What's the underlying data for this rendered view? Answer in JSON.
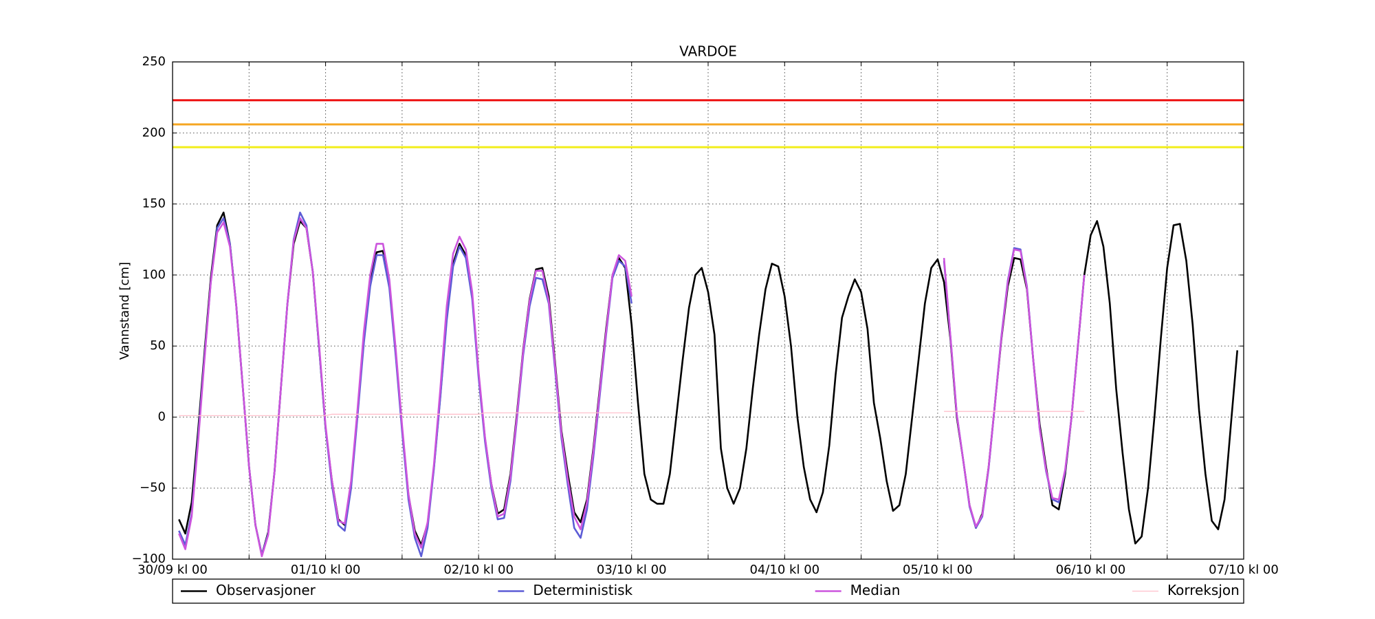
{
  "chart_data": {
    "type": "line",
    "title": "VARDOE",
    "y_label": "Vannstand [cm]",
    "xlim": [
      0,
      168
    ],
    "ylim": [
      -100,
      250
    ],
    "xticks": [
      {
        "value": 0,
        "label": "30/09 kl 00"
      },
      {
        "value": 24,
        "label": "01/10 kl 00"
      },
      {
        "value": 48,
        "label": "02/10 kl 00"
      },
      {
        "value": 72,
        "label": "03/10 kl 00"
      },
      {
        "value": 96,
        "label": "04/10 kl 00"
      },
      {
        "value": 120,
        "label": "05/10 kl 00"
      },
      {
        "value": 144,
        "label": "06/10 kl 00"
      },
      {
        "value": 168,
        "label": "07/10 kl 00"
      }
    ],
    "xticks_minor": [
      12,
      36,
      60,
      84,
      108,
      132,
      156
    ],
    "yticks": [
      {
        "value": -100,
        "label": "−100"
      },
      {
        "value": -50,
        "label": "−50"
      },
      0,
      50,
      100,
      150,
      200,
      250
    ],
    "grid": true,
    "legend": "bottom",
    "thresholds": [
      {
        "value": 223,
        "color": "#ee1111"
      },
      {
        "value": 206,
        "color": "#f5a623"
      },
      {
        "value": 190,
        "color": "#f2ee1a"
      }
    ],
    "x": [
      1,
      2,
      3,
      4,
      5,
      6,
      7,
      8,
      9,
      10,
      11,
      12,
      13,
      14,
      15,
      16,
      17,
      18,
      19,
      20,
      21,
      22,
      23,
      24,
      25,
      26,
      27,
      28,
      29,
      30,
      31,
      32,
      33,
      34,
      35,
      36,
      37,
      38,
      39,
      40,
      41,
      42,
      43,
      44,
      45,
      46,
      47,
      48,
      49,
      50,
      51,
      52,
      53,
      54,
      55,
      56,
      57,
      58,
      59,
      60,
      61,
      62,
      63,
      64,
      65,
      66,
      67,
      68,
      69,
      70,
      71,
      72,
      73,
      74,
      75,
      76,
      77,
      78,
      79,
      80,
      81,
      82,
      83,
      84,
      85,
      86,
      87,
      88,
      89,
      90,
      91,
      92,
      93,
      94,
      95,
      96,
      97,
      98,
      99,
      100,
      101,
      102,
      103,
      104,
      105,
      106,
      107,
      108,
      109,
      110,
      111,
      112,
      113,
      114,
      115,
      116,
      117,
      118,
      119,
      120,
      121,
      122,
      123,
      124,
      125,
      126,
      127,
      128,
      129,
      130,
      131,
      132,
      133,
      134,
      135,
      136,
      137,
      138,
      139,
      140,
      141,
      142,
      143,
      144,
      145,
      146,
      147,
      148,
      149,
      150,
      151,
      152,
      153,
      154,
      155,
      156,
      157,
      158,
      159,
      160,
      161,
      162,
      163,
      164,
      165,
      166,
      167
    ],
    "series": [
      {
        "name": "Observasjoner",
        "color": "#000000",
        "values": [
          -72,
          -82,
          -60,
          -10,
          45,
          98,
          135,
          144,
          122,
          78,
          22,
          -35,
          -76,
          -97,
          -81,
          -38,
          21,
          79,
          122,
          138,
          133,
          102,
          48,
          -8,
          -45,
          -72,
          -76,
          -48,
          2,
          55,
          95,
          116,
          117,
          93,
          45,
          -8,
          -55,
          -80,
          -90,
          -75,
          -35,
          15,
          70,
          108,
          122,
          114,
          85,
          30,
          -15,
          -47,
          -68,
          -65,
          -40,
          2,
          48,
          83,
          104,
          105,
          85,
          38,
          -10,
          -40,
          -67,
          -74,
          -58,
          -22,
          20,
          62,
          100,
          112,
          105,
          65,
          10,
          -40,
          -58,
          -61,
          -61,
          -40,
          0,
          40,
          77,
          100,
          105,
          88,
          58,
          -22,
          -50,
          -61,
          -50,
          -22,
          20,
          58,
          90,
          108,
          106,
          85,
          50,
          0,
          -35,
          -58,
          -67,
          -53,
          -20,
          30,
          70,
          85,
          97,
          88,
          62,
          10,
          -15,
          -45,
          -66,
          -62,
          -40,
          0,
          40,
          80,
          105,
          111,
          95,
          55,
          0,
          -30,
          -62,
          -78,
          -68,
          -35,
          10,
          55,
          92,
          112,
          111,
          90,
          40,
          -5,
          -35,
          -62,
          -65,
          -40,
          0,
          50,
          100,
          128,
          138,
          120,
          80,
          20,
          -25,
          -65,
          -89,
          -84,
          -50,
          0,
          55,
          105,
          135,
          136,
          110,
          65,
          5,
          -40,
          -73,
          -79,
          -58,
          -5,
          47
        ]
      },
      {
        "name": "Deterministisk",
        "color": "#5c5cd6",
        "values": [
          -80,
          -90,
          -68,
          -15,
          42,
          95,
          133,
          140,
          122,
          78,
          22,
          -35,
          -76,
          -97,
          -82,
          -38,
          21,
          79,
          125,
          144,
          135,
          102,
          48,
          -8,
          -48,
          -76,
          -80,
          -50,
          0,
          52,
          92,
          114,
          114,
          91,
          43,
          -10,
          -58,
          -85,
          -98,
          -78,
          -36,
          14,
          68,
          106,
          120,
          112,
          83,
          28,
          -17,
          -50,
          -72,
          -71,
          -45,
          -2,
          44,
          78,
          98,
          97,
          80,
          33,
          -15,
          -48,
          -78,
          -85,
          -65,
          -28,
          15,
          58,
          98,
          110,
          106,
          80,
          null,
          null,
          null,
          null,
          null,
          null,
          null,
          null,
          null,
          null,
          null,
          null,
          null,
          null,
          null,
          null,
          null,
          null,
          null,
          null,
          null,
          null,
          null,
          null,
          null,
          null,
          null,
          null,
          null,
          null,
          null,
          null,
          null,
          null,
          null,
          null,
          null,
          null,
          null,
          null,
          null,
          null,
          null,
          null,
          null,
          null,
          null,
          null,
          110,
          57,
          2,
          -30,
          -63,
          -78,
          -70,
          -36,
          10,
          57,
          96,
          119,
          118,
          92,
          40,
          -8,
          -38,
          -58,
          -60,
          -38,
          0,
          50,
          100,
          null,
          null,
          null,
          null,
          null,
          null,
          null,
          null,
          null,
          null,
          null,
          null,
          null,
          null,
          null,
          null,
          null,
          null,
          null,
          null,
          null,
          null,
          null,
          null
        ]
      },
      {
        "name": "Median",
        "color": "#cc55dd",
        "values": [
          -82,
          -93,
          -70,
          -18,
          40,
          95,
          130,
          137,
          120,
          78,
          22,
          -35,
          -76,
          -98,
          -83,
          -38,
          21,
          79,
          124,
          140,
          133,
          102,
          50,
          -6,
          -45,
          -73,
          -75,
          -45,
          5,
          60,
          100,
          122,
          122,
          97,
          48,
          -6,
          -54,
          -82,
          -92,
          -74,
          -33,
          20,
          78,
          115,
          127,
          118,
          88,
          32,
          -14,
          -47,
          -70,
          -68,
          -42,
          0,
          47,
          82,
          103,
          103,
          82,
          36,
          -12,
          -44,
          -70,
          -79,
          -60,
          -24,
          18,
          60,
          100,
          114,
          110,
          85,
          null,
          null,
          null,
          null,
          null,
          null,
          null,
          null,
          null,
          null,
          null,
          null,
          null,
          null,
          null,
          null,
          null,
          null,
          null,
          null,
          null,
          null,
          null,
          null,
          null,
          null,
          null,
          null,
          null,
          null,
          null,
          null,
          null,
          null,
          null,
          null,
          null,
          null,
          null,
          null,
          null,
          null,
          null,
          null,
          null,
          null,
          null,
          null,
          112,
          57,
          2,
          -30,
          -62,
          -77,
          -69,
          -35,
          10,
          56,
          95,
          118,
          117,
          91,
          40,
          -8,
          -37,
          -57,
          -58,
          -37,
          0,
          50,
          100,
          null,
          null,
          null,
          null,
          null,
          null,
          null,
          null,
          null,
          null,
          null,
          null,
          null,
          null,
          null,
          null,
          null,
          null,
          null,
          null,
          null,
          null,
          null,
          null
        ]
      },
      {
        "name": "Korreksjon",
        "color": "#ffc0cb",
        "values": [
          1,
          1,
          1,
          1,
          1,
          1,
          1,
          1,
          1,
          1,
          1,
          1,
          1,
          1,
          1,
          1,
          1,
          1,
          1,
          1,
          1,
          1,
          1,
          1,
          2,
          2,
          2,
          2,
          2,
          2,
          2,
          2,
          2,
          2,
          2,
          2,
          2,
          2,
          2,
          2,
          2,
          2,
          2,
          2,
          2,
          2,
          2,
          2,
          3,
          3,
          3,
          3,
          3,
          3,
          3,
          3,
          3,
          3,
          3,
          3,
          3,
          3,
          3,
          3,
          3,
          3,
          3,
          3,
          3,
          3,
          3,
          3,
          null,
          null,
          null,
          null,
          null,
          null,
          null,
          null,
          null,
          null,
          null,
          null,
          null,
          null,
          null,
          null,
          null,
          null,
          null,
          null,
          null,
          null,
          null,
          null,
          null,
          null,
          null,
          null,
          null,
          null,
          null,
          null,
          null,
          null,
          null,
          null,
          null,
          null,
          null,
          null,
          null,
          null,
          null,
          null,
          null,
          null,
          null,
          null,
          4,
          4,
          4,
          4,
          4,
          4,
          4,
          4,
          4,
          4,
          4,
          4,
          4,
          4,
          4,
          4,
          4,
          4,
          4,
          4,
          4,
          4,
          4,
          null,
          null,
          null,
          null,
          null,
          null,
          null,
          null,
          null,
          null,
          null,
          null,
          null,
          null,
          null,
          null,
          null,
          null,
          null,
          null,
          null,
          null,
          null,
          null
        ]
      }
    ]
  }
}
